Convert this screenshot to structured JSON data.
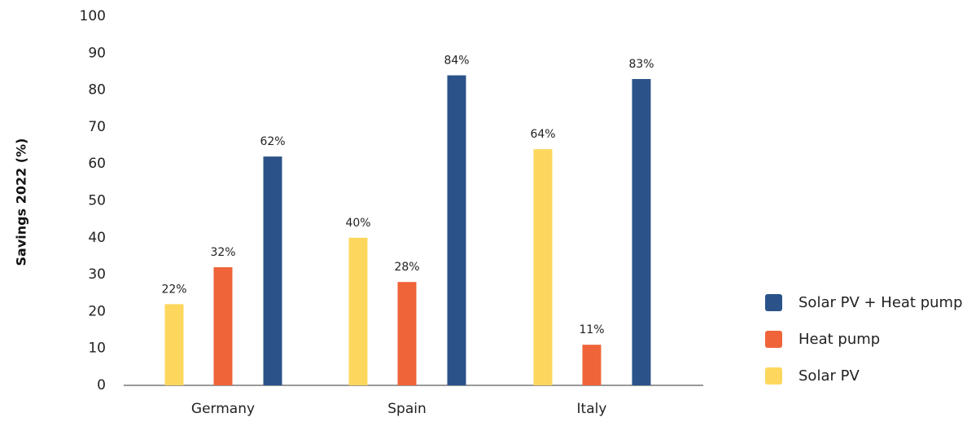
{
  "chart_data": {
    "type": "bar",
    "title": "",
    "xlabel": "",
    "ylabel": "Savings 2022 (%)",
    "ylim": [
      0,
      100
    ],
    "yticks": [
      0,
      10,
      20,
      30,
      40,
      50,
      60,
      70,
      80,
      90,
      100
    ],
    "grid": false,
    "legend_position": "right",
    "categories": [
      "Germany",
      "Spain",
      "Italy"
    ],
    "series": [
      {
        "name": "Solar PV",
        "color": "#FDD75D",
        "values": [
          22,
          40,
          64
        ],
        "labels": [
          "22%",
          "40%",
          "64%"
        ]
      },
      {
        "name": "Heat pump",
        "color": "#F0643A",
        "values": [
          32,
          28,
          11
        ],
        "labels": [
          "32%",
          "28%",
          "11%"
        ]
      },
      {
        "name": "Solar PV + Heat pump",
        "color": "#2B5389",
        "values": [
          62,
          84,
          83
        ],
        "labels": [
          "62%",
          "84%",
          "83%"
        ]
      }
    ],
    "legend_order": [
      "Solar PV + Heat pump",
      "Heat pump",
      "Solar PV"
    ]
  }
}
